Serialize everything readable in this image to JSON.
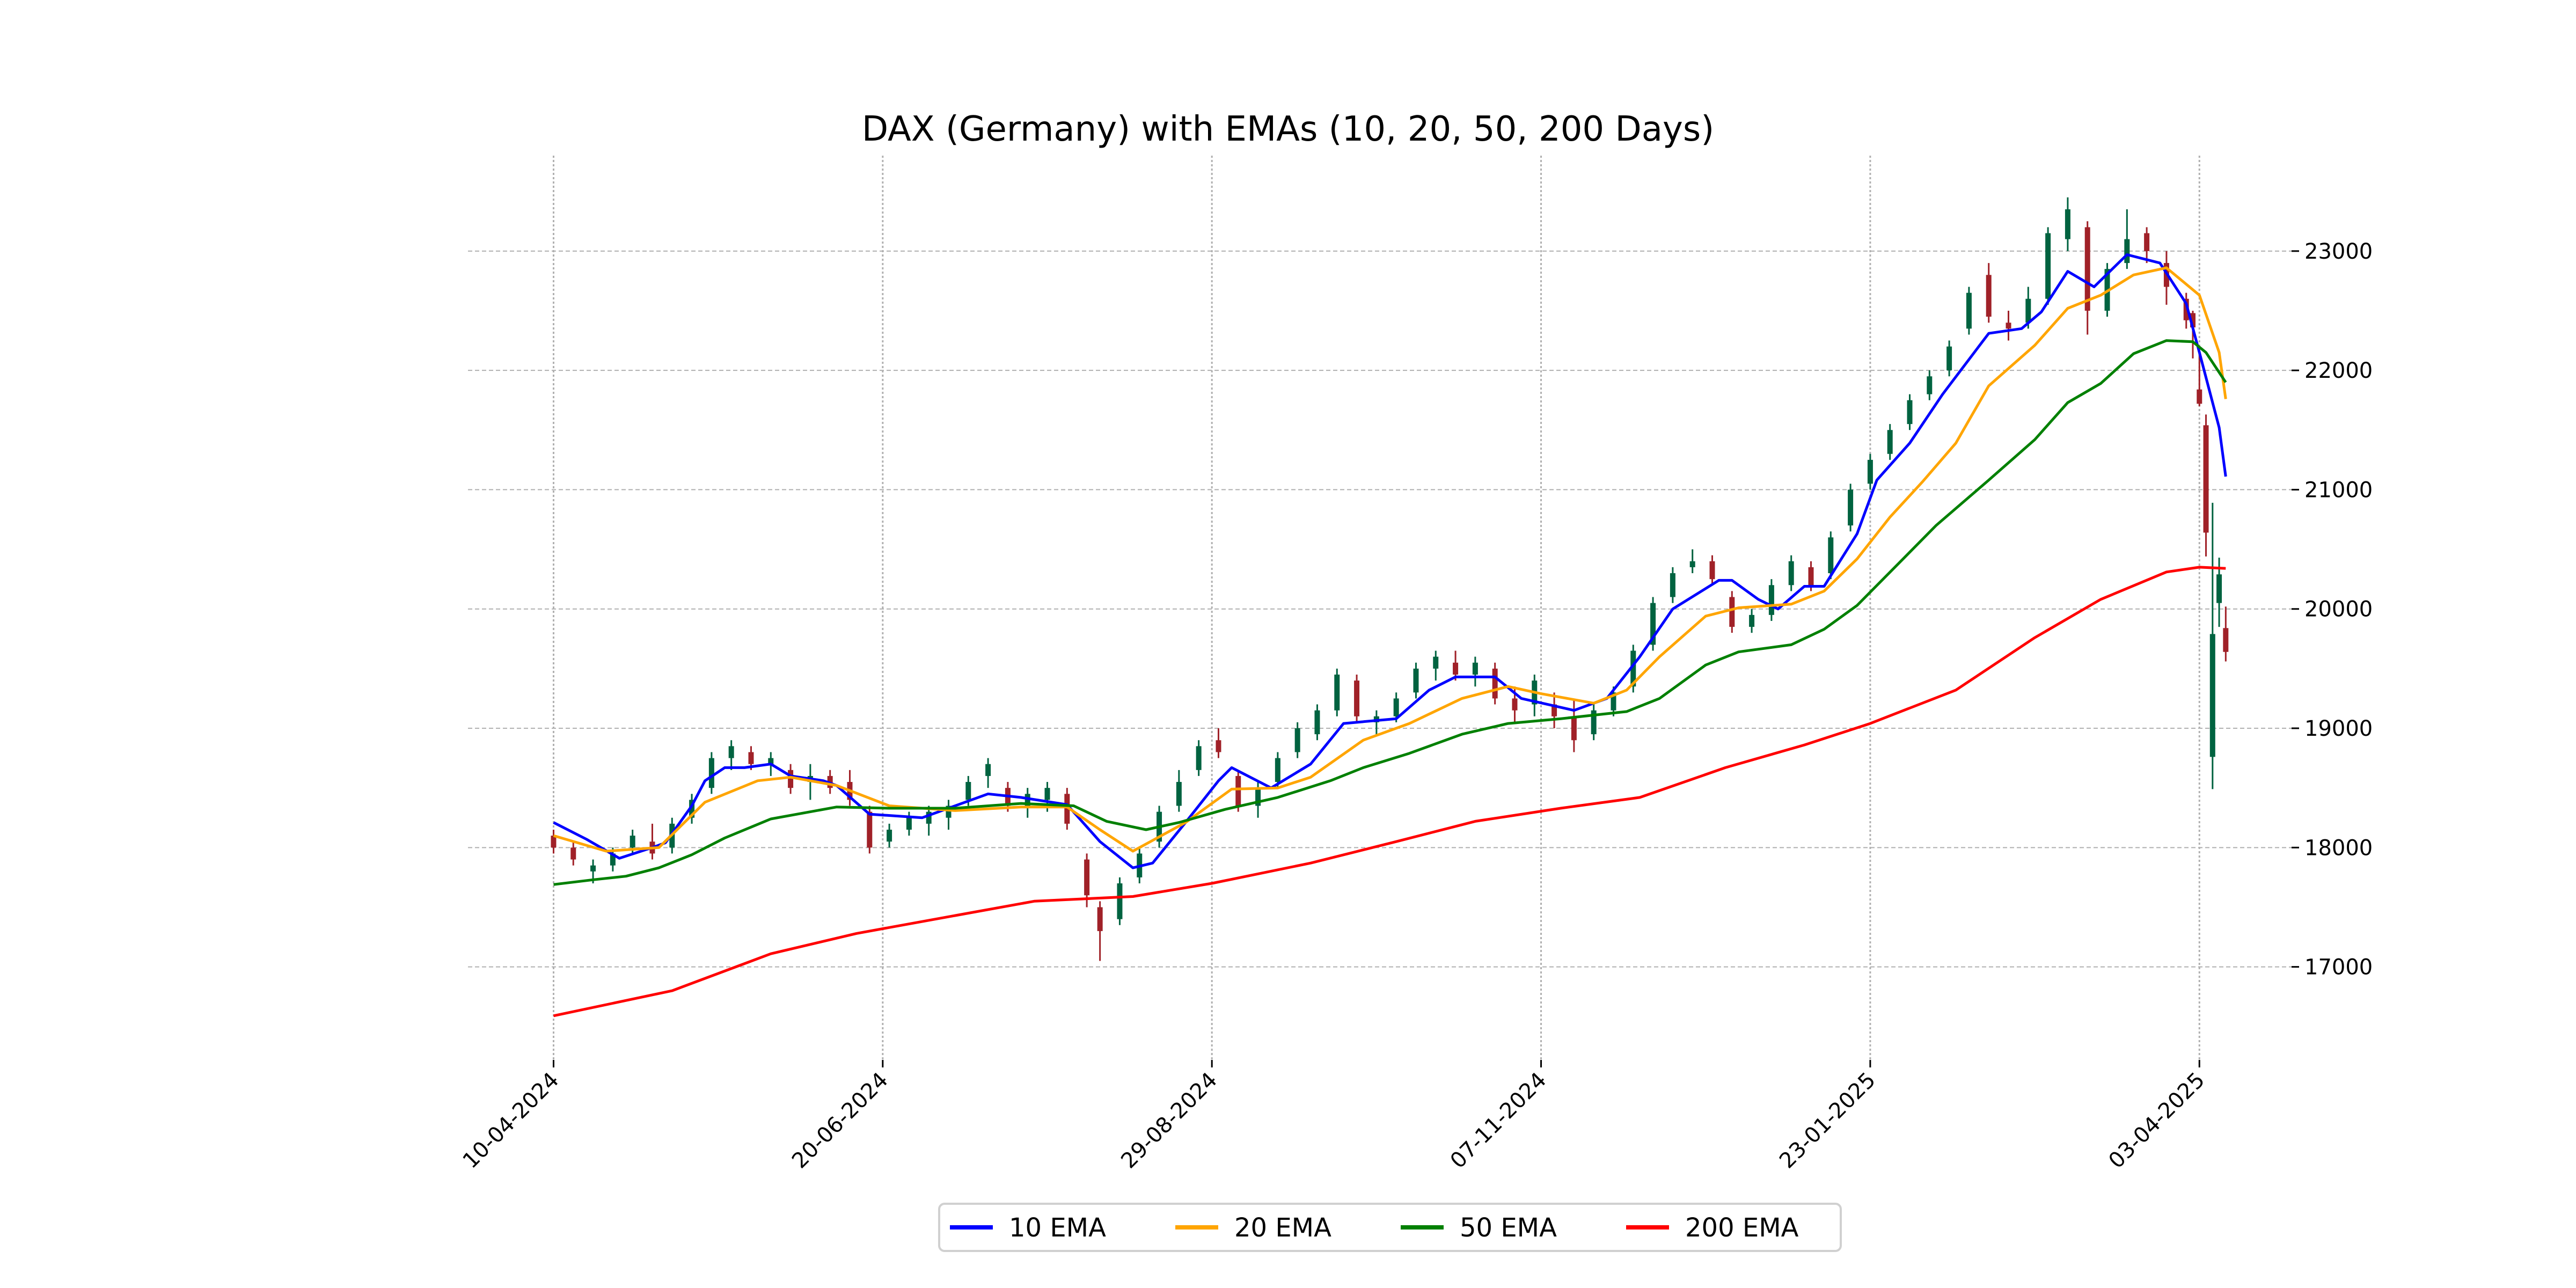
{
  "chart_data": {
    "type": "candlestick-line",
    "title": "DAX (Germany) with EMAs (10, 20, 50, 200 Days)",
    "xlabel": "",
    "ylabel": "",
    "x_unit": "trading-day index from 10-04-2024",
    "xlim": [
      -13,
      264
    ],
    "ylim": [
      16220,
      23800
    ],
    "grid": true,
    "legend_position": "bottom-center",
    "x_ticks": [
      {
        "x": 0,
        "label": "10-04-2024"
      },
      {
        "x": 50,
        "label": "20-06-2024"
      },
      {
        "x": 100,
        "label": "29-08-2024"
      },
      {
        "x": 150,
        "label": "07-11-2024"
      },
      {
        "x": 200,
        "label": "23-01-2025"
      },
      {
        "x": 250,
        "label": "03-04-2025"
      }
    ],
    "y_ticks": [
      {
        "y": 17000,
        "label": "17000"
      },
      {
        "y": 18000,
        "label": "18000"
      },
      {
        "y": 19000,
        "label": "19000"
      },
      {
        "y": 20000,
        "label": "20000"
      },
      {
        "y": 21000,
        "label": "21000"
      },
      {
        "y": 22000,
        "label": "22000"
      },
      {
        "y": 23000,
        "label": "23000"
      }
    ],
    "candle_colors": {
      "up": "#006340",
      "down": "#a02128"
    },
    "candles_fields": [
      "day",
      "open",
      "high",
      "low",
      "close"
    ],
    "candles": [
      [
        0,
        18100,
        18150,
        17950,
        18000
      ],
      [
        3,
        18000,
        18050,
        17850,
        17900
      ],
      [
        6,
        17800,
        17900,
        17700,
        17850
      ],
      [
        9,
        17850,
        18000,
        17800,
        17950
      ],
      [
        12,
        18000,
        18150,
        17950,
        18100
      ],
      [
        15,
        18050,
        18200,
        17900,
        17950
      ],
      [
        18,
        18000,
        18250,
        17950,
        18200
      ],
      [
        21,
        18250,
        18450,
        18200,
        18400
      ],
      [
        24,
        18500,
        18800,
        18450,
        18750
      ],
      [
        27,
        18750,
        18900,
        18650,
        18850
      ],
      [
        30,
        18800,
        18850,
        18650,
        18700
      ],
      [
        33,
        18700,
        18800,
        18600,
        18750
      ],
      [
        36,
        18650,
        18700,
        18450,
        18500
      ],
      [
        39,
        18550,
        18700,
        18400,
        18600
      ],
      [
        42,
        18600,
        18650,
        18450,
        18500
      ],
      [
        45,
        18550,
        18650,
        18350,
        18400
      ],
      [
        48,
        18300,
        18350,
        17950,
        18000
      ],
      [
        51,
        18050,
        18200,
        18000,
        18150
      ],
      [
        54,
        18150,
        18300,
        18100,
        18250
      ],
      [
        57,
        18200,
        18350,
        18100,
        18300
      ],
      [
        60,
        18250,
        18400,
        18150,
        18350
      ],
      [
        63,
        18400,
        18600,
        18350,
        18550
      ],
      [
        66,
        18600,
        18750,
        18500,
        18700
      ],
      [
        69,
        18500,
        18550,
        18300,
        18350
      ],
      [
        72,
        18350,
        18500,
        18250,
        18450
      ],
      [
        75,
        18400,
        18550,
        18300,
        18500
      ],
      [
        78,
        18450,
        18500,
        18150,
        18200
      ],
      [
        81,
        17900,
        17950,
        17500,
        17600
      ],
      [
        83,
        17500,
        17550,
        17050,
        17300
      ],
      [
        86,
        17400,
        17750,
        17350,
        17700
      ],
      [
        89,
        17750,
        18000,
        17700,
        17950
      ],
      [
        92,
        18050,
        18350,
        18000,
        18300
      ],
      [
        95,
        18350,
        18650,
        18300,
        18550
      ],
      [
        98,
        18650,
        18900,
        18600,
        18850
      ],
      [
        101,
        18900,
        19000,
        18750,
        18800
      ],
      [
        104,
        18600,
        18650,
        18300,
        18350
      ],
      [
        107,
        18350,
        18550,
        18250,
        18500
      ],
      [
        110,
        18550,
        18800,
        18500,
        18750
      ],
      [
        113,
        18800,
        19050,
        18750,
        19000
      ],
      [
        116,
        18950,
        19200,
        18900,
        19150
      ],
      [
        119,
        19150,
        19500,
        19100,
        19450
      ],
      [
        122,
        19400,
        19450,
        19050,
        19100
      ],
      [
        125,
        19050,
        19150,
        18950,
        19100
      ],
      [
        128,
        19100,
        19300,
        19050,
        19250
      ],
      [
        131,
        19300,
        19550,
        19250,
        19500
      ],
      [
        134,
        19500,
        19650,
        19400,
        19600
      ],
      [
        137,
        19550,
        19650,
        19400,
        19450
      ],
      [
        140,
        19450,
        19600,
        19350,
        19550
      ],
      [
        143,
        19500,
        19550,
        19200,
        19250
      ],
      [
        146,
        19250,
        19350,
        19050,
        19150
      ],
      [
        149,
        19200,
        19450,
        19100,
        19400
      ],
      [
        152,
        19200,
        19300,
        19000,
        19100
      ],
      [
        155,
        19100,
        19250,
        18800,
        18900
      ],
      [
        158,
        18950,
        19200,
        18900,
        19150
      ],
      [
        161,
        19150,
        19350,
        19100,
        19300
      ],
      [
        164,
        19350,
        19700,
        19300,
        19650
      ],
      [
        167,
        19700,
        20100,
        19650,
        20050
      ],
      [
        170,
        20100,
        20350,
        20050,
        20300
      ],
      [
        173,
        20350,
        20500,
        20300,
        20400
      ],
      [
        176,
        20400,
        20450,
        20200,
        20250
      ],
      [
        179,
        20100,
        20150,
        19800,
        19850
      ],
      [
        182,
        19850,
        20000,
        19800,
        19950
      ],
      [
        185,
        19950,
        20250,
        19900,
        20200
      ],
      [
        188,
        20200,
        20450,
        20150,
        20400
      ],
      [
        191,
        20350,
        20400,
        20150,
        20200
      ],
      [
        194,
        20300,
        20650,
        20250,
        20600
      ],
      [
        197,
        20700,
        21050,
        20650,
        21000
      ],
      [
        200,
        21050,
        21300,
        21000,
        21250
      ],
      [
        203,
        21300,
        21550,
        21250,
        21500
      ],
      [
        206,
        21550,
        21800,
        21500,
        21750
      ],
      [
        209,
        21800,
        22000,
        21750,
        21950
      ],
      [
        212,
        22000,
        22250,
        21950,
        22200
      ],
      [
        215,
        22350,
        22700,
        22300,
        22650
      ],
      [
        218,
        22800,
        22900,
        22400,
        22450
      ],
      [
        221,
        22400,
        22500,
        22250,
        22350
      ],
      [
        224,
        22400,
        22700,
        22350,
        22600
      ],
      [
        227,
        22600,
        23200,
        22550,
        23150
      ],
      [
        230,
        23100,
        23450,
        23000,
        23350
      ],
      [
        233,
        23200,
        23250,
        22300,
        22500
      ],
      [
        236,
        22500,
        22900,
        22450,
        22850
      ],
      [
        239,
        22900,
        23350,
        22850,
        23100
      ],
      [
        242,
        23150,
        23200,
        22900,
        23000
      ],
      [
        245,
        22900,
        23000,
        22550,
        22700
      ],
      [
        248,
        22600,
        22650,
        22350,
        22420
      ],
      [
        249,
        22480,
        22500,
        22100,
        22360
      ],
      [
        250,
        21840,
        22150,
        21700,
        21720
      ],
      [
        251,
        21540,
        21630,
        20440,
        20640
      ],
      [
        252,
        18760,
        20890,
        18490,
        19790
      ],
      [
        253,
        20050,
        20430,
        19850,
        20290
      ],
      [
        254,
        19840,
        20020,
        19560,
        19640
      ]
    ],
    "series": [
      {
        "name": "10 EMA",
        "color": "#0000ff",
        "points": [
          [
            0,
            18210
          ],
          [
            5,
            18070
          ],
          [
            10,
            17910
          ],
          [
            15,
            18000
          ],
          [
            17,
            18040
          ],
          [
            21,
            18350
          ],
          [
            23,
            18560
          ],
          [
            26,
            18670
          ],
          [
            29,
            18670
          ],
          [
            33,
            18700
          ],
          [
            36,
            18600
          ],
          [
            41,
            18560
          ],
          [
            43,
            18520
          ],
          [
            48,
            18280
          ],
          [
            56,
            18250
          ],
          [
            66,
            18450
          ],
          [
            71,
            18420
          ],
          [
            78,
            18360
          ],
          [
            83,
            18050
          ],
          [
            88,
            17830
          ],
          [
            91,
            17870
          ],
          [
            96,
            18210
          ],
          [
            101,
            18560
          ],
          [
            103,
            18670
          ],
          [
            109,
            18500
          ],
          [
            115,
            18700
          ],
          [
            120,
            19040
          ],
          [
            128,
            19080
          ],
          [
            133,
            19320
          ],
          [
            137,
            19430
          ],
          [
            143,
            19430
          ],
          [
            147,
            19250
          ],
          [
            155,
            19150
          ],
          [
            160,
            19250
          ],
          [
            165,
            19600
          ],
          [
            170,
            20000
          ],
          [
            177,
            20240
          ],
          [
            179,
            20240
          ],
          [
            183,
            20080
          ],
          [
            186,
            20000
          ],
          [
            190,
            20190
          ],
          [
            193,
            20190
          ],
          [
            198,
            20630
          ],
          [
            201,
            21080
          ],
          [
            206,
            21390
          ],
          [
            211,
            21800
          ],
          [
            218,
            22310
          ],
          [
            223,
            22350
          ],
          [
            226,
            22490
          ],
          [
            230,
            22830
          ],
          [
            234,
            22700
          ],
          [
            239,
            22970
          ],
          [
            244,
            22900
          ],
          [
            248,
            22560
          ],
          [
            250,
            22150
          ],
          [
            253,
            21520
          ],
          [
            254,
            21110
          ]
        ]
      },
      {
        "name": "20 EMA",
        "color": "#ffa500",
        "points": [
          [
            0,
            18100
          ],
          [
            8,
            17970
          ],
          [
            16,
            18000
          ],
          [
            23,
            18380
          ],
          [
            31,
            18560
          ],
          [
            36,
            18590
          ],
          [
            43,
            18520
          ],
          [
            51,
            18350
          ],
          [
            61,
            18310
          ],
          [
            71,
            18340
          ],
          [
            78,
            18340
          ],
          [
            83,
            18150
          ],
          [
            88,
            17970
          ],
          [
            96,
            18210
          ],
          [
            103,
            18490
          ],
          [
            110,
            18500
          ],
          [
            115,
            18590
          ],
          [
            123,
            18900
          ],
          [
            130,
            19040
          ],
          [
            138,
            19250
          ],
          [
            145,
            19350
          ],
          [
            150,
            19290
          ],
          [
            158,
            19210
          ],
          [
            163,
            19320
          ],
          [
            168,
            19600
          ],
          [
            175,
            19940
          ],
          [
            180,
            20010
          ],
          [
            188,
            20040
          ],
          [
            193,
            20150
          ],
          [
            198,
            20420
          ],
          [
            203,
            20770
          ],
          [
            208,
            21070
          ],
          [
            213,
            21390
          ],
          [
            218,
            21870
          ],
          [
            225,
            22210
          ],
          [
            230,
            22520
          ],
          [
            235,
            22630
          ],
          [
            240,
            22800
          ],
          [
            245,
            22860
          ],
          [
            250,
            22630
          ],
          [
            253,
            22150
          ],
          [
            254,
            21760
          ]
        ]
      },
      {
        "name": "50 EMA",
        "color": "#008000",
        "points": [
          [
            0,
            17690
          ],
          [
            6,
            17730
          ],
          [
            11,
            17760
          ],
          [
            16,
            17830
          ],
          [
            21,
            17940
          ],
          [
            26,
            18080
          ],
          [
            33,
            18240
          ],
          [
            43,
            18340
          ],
          [
            51,
            18330
          ],
          [
            61,
            18330
          ],
          [
            71,
            18370
          ],
          [
            79,
            18350
          ],
          [
            84,
            18220
          ],
          [
            90,
            18150
          ],
          [
            95,
            18210
          ],
          [
            102,
            18320
          ],
          [
            110,
            18420
          ],
          [
            118,
            18560
          ],
          [
            123,
            18670
          ],
          [
            130,
            18790
          ],
          [
            138,
            18950
          ],
          [
            145,
            19040
          ],
          [
            153,
            19080
          ],
          [
            163,
            19140
          ],
          [
            168,
            19250
          ],
          [
            175,
            19530
          ],
          [
            180,
            19640
          ],
          [
            188,
            19700
          ],
          [
            193,
            19830
          ],
          [
            198,
            20030
          ],
          [
            205,
            20420
          ],
          [
            210,
            20700
          ],
          [
            218,
            21080
          ],
          [
            225,
            21420
          ],
          [
            230,
            21730
          ],
          [
            235,
            21890
          ],
          [
            240,
            22140
          ],
          [
            245,
            22250
          ],
          [
            249,
            22240
          ],
          [
            251,
            22150
          ],
          [
            254,
            21900
          ]
        ]
      },
      {
        "name": "200 EMA",
        "color": "#ff0000",
        "points": [
          [
            0,
            16590
          ],
          [
            18,
            16800
          ],
          [
            33,
            17110
          ],
          [
            46,
            17280
          ],
          [
            61,
            17430
          ],
          [
            73,
            17550
          ],
          [
            88,
            17590
          ],
          [
            100,
            17700
          ],
          [
            115,
            17870
          ],
          [
            128,
            18050
          ],
          [
            140,
            18220
          ],
          [
            153,
            18330
          ],
          [
            165,
            18420
          ],
          [
            178,
            18670
          ],
          [
            190,
            18860
          ],
          [
            200,
            19040
          ],
          [
            213,
            19320
          ],
          [
            225,
            19760
          ],
          [
            235,
            20080
          ],
          [
            245,
            20310
          ],
          [
            250,
            20350
          ],
          [
            254,
            20340
          ]
        ]
      }
    ]
  }
}
